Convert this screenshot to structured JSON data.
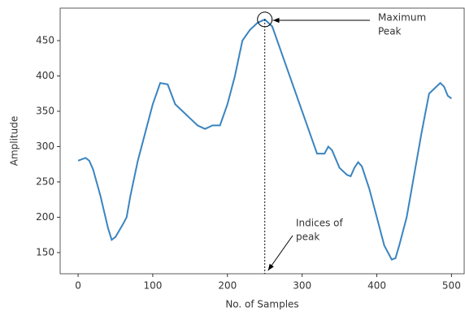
{
  "chart_data": {
    "type": "line",
    "x_label": "No. of Samples",
    "y_label": "Amplitude",
    "x": [
      0,
      10,
      15,
      20,
      30,
      40,
      45,
      50,
      60,
      65,
      70,
      80,
      90,
      100,
      110,
      120,
      130,
      140,
      150,
      160,
      170,
      180,
      190,
      200,
      210,
      220,
      230,
      240,
      250,
      260,
      270,
      280,
      290,
      300,
      310,
      320,
      330,
      335,
      340,
      350,
      360,
      365,
      370,
      375,
      380,
      390,
      400,
      410,
      420,
      425,
      430,
      440,
      450,
      460,
      470,
      480,
      485,
      490,
      495,
      500
    ],
    "series": [
      {
        "color": "#3a84bf",
        "values": [
          280,
          284,
          280,
          268,
          230,
          185,
          168,
          172,
          190,
          200,
          230,
          280,
          320,
          360,
          390,
          388,
          360,
          350,
          340,
          330,
          325,
          330,
          330,
          360,
          400,
          450,
          465,
          475,
          480,
          470,
          440,
          410,
          380,
          350,
          320,
          290,
          290,
          300,
          295,
          270,
          260,
          258,
          270,
          278,
          272,
          240,
          200,
          160,
          140,
          142,
          160,
          200,
          260,
          320,
          375,
          385,
          390,
          385,
          372,
          368
        ]
      }
    ],
    "xlim": [
      -24,
      517
    ],
    "ylim": [
      120,
      496
    ],
    "xticks": [
      0,
      100,
      200,
      300,
      400,
      500
    ],
    "yticks": [
      150,
      200,
      250,
      300,
      350,
      400,
      450
    ],
    "annotations": [
      {
        "lines": [
          "Maximum",
          "Peak"
        ]
      },
      {
        "lines": [
          "Indices of",
          "peak"
        ]
      }
    ]
  }
}
